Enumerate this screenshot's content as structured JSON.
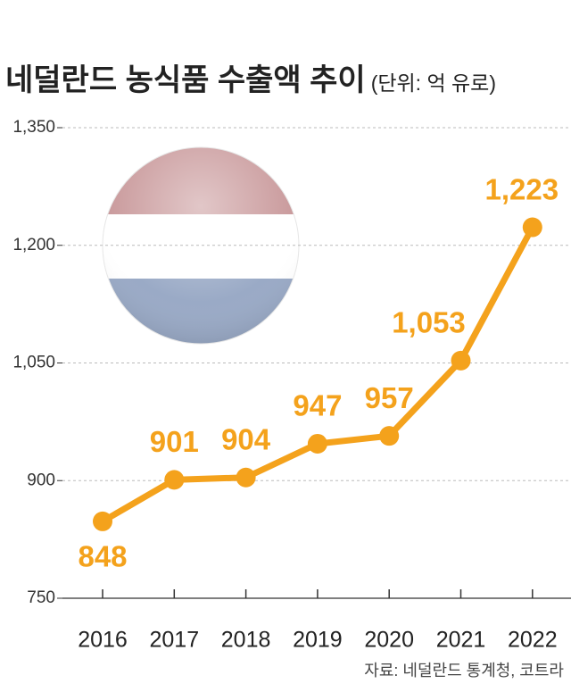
{
  "chart_data": {
    "type": "line",
    "title": "네덜란드 농식품 수출액 추이",
    "subtitle": "(단위: 억 유로)",
    "source": "자료: 네덜란드 통계청, 코트라",
    "categories": [
      "2016",
      "2017",
      "2018",
      "2019",
      "2020",
      "2021",
      "2022"
    ],
    "values": [
      848,
      901,
      904,
      947,
      957,
      1053,
      1223
    ],
    "value_labels": [
      "848",
      "901",
      "904",
      "947",
      "957",
      "1,053",
      "1,223"
    ],
    "color": "#f4a21c",
    "ylim": [
      750,
      1350
    ],
    "yticks": [
      750,
      900,
      {
        "value": 1050,
        "label": "1,050"
      },
      {
        "value": 1200,
        "label": "1,200"
      },
      {
        "value": 1350,
        "label": "1,350"
      }
    ],
    "grid": true
  }
}
